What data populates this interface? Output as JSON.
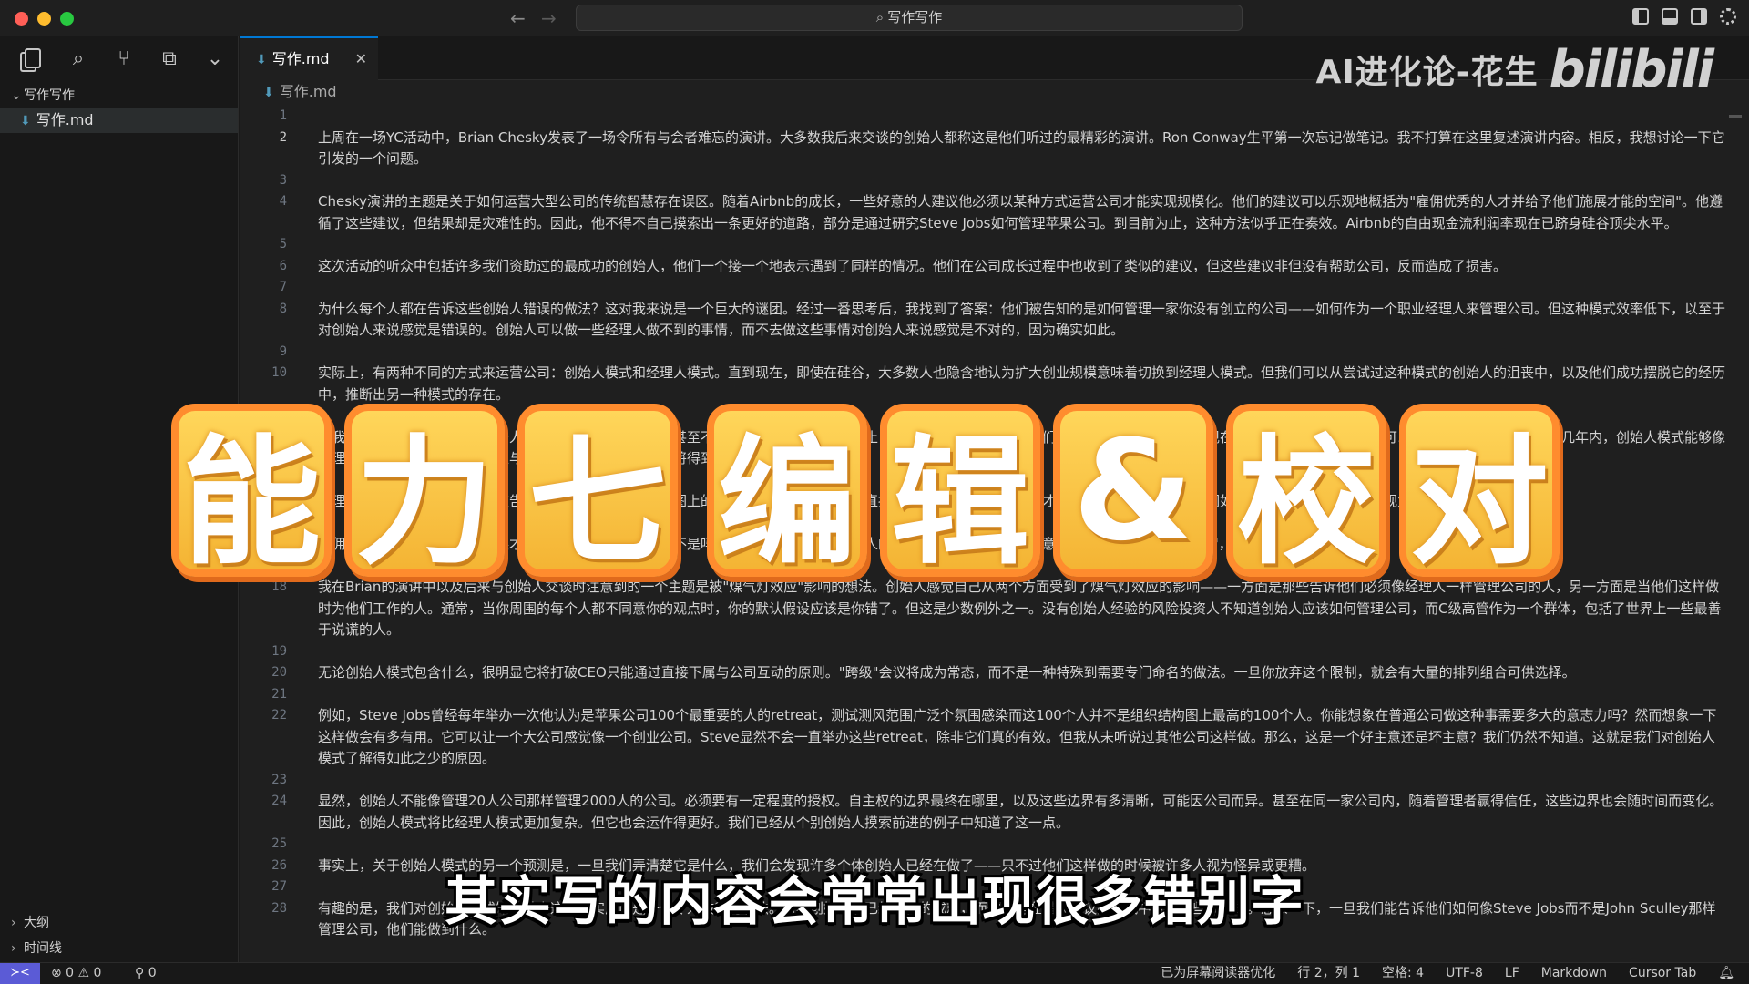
{
  "window": {
    "command_center": "写作写作"
  },
  "sidebar": {
    "folder_label": "写作写作",
    "files": [
      {
        "name": "写作.md"
      }
    ],
    "outline_label": "大纲",
    "timeline_label": "时间线"
  },
  "editor": {
    "tab_label": "写作.md",
    "breadcrumb": "写作.md",
    "lines": [
      {
        "num": "1",
        "text": ""
      },
      {
        "num": "2",
        "text": "上周在一场YC活动中，Brian Chesky发表了一场令所有与会者难忘的演讲。大多数我后来交谈的创始人都称这是他们听过的最精彩的演讲。Ron Conway生平第一次忘记做笔记。我不打算在这里复述演讲内容。相反，我想讨论一下它引发的一个问题。",
        "active": true
      },
      {
        "num": "3",
        "text": ""
      },
      {
        "num": "4",
        "text": "Chesky演讲的主题是关于如何运营大型公司的传统智慧存在误区。随着Airbnb的成长，一些好意的人建议他必须以某种方式运营公司才能实现规模化。他们的建议可以乐观地概括为\"雇佣优秀的人才并给予他们施展才能的空间\"。他遵循了这些建议，但结果却是灾难性的。因此，他不得不自己摸索出一条更好的道路，部分是通过研究Steve Jobs如何管理苹果公司。到目前为止，这种方法似乎正在奏效。Airbnb的自由现金流利润率现在已跻身硅谷顶尖水平。"
      },
      {
        "num": "5",
        "text": ""
      },
      {
        "num": "6",
        "text": "这次活动的听众中包括许多我们资助过的最成功的创始人，他们一个接一个地表示遇到了同样的情况。他们在公司成长过程中也收到了类似的建议，但这些建议非但没有帮助公司，反而造成了损害。"
      },
      {
        "num": "7",
        "text": ""
      },
      {
        "num": "8",
        "text": "为什么每个人都在告诉这些创始人错误的做法？这对我来说是一个巨大的谜团。经过一番思考后，我找到了答案：他们被告知的是如何管理一家你没有创立的公司——如何作为一个职业经理人来管理公司。但这种模式效率低下，以至于对创始人来说感觉是错误的。创始人可以做一些经理人做不到的事情，而不去做这些事情对创始人来说感觉是不对的，因为确实如此。"
      },
      {
        "num": "9",
        "text": ""
      },
      {
        "num": "10",
        "text": "实际上，有两种不同的方式来运营公司：创始人模式和经理人模式。直到现在，即使在硅谷，大多数人也隐含地认为扩大创业规模意味着切换到经理人模式。但我们可以从尝试过这种模式的创始人的沮丧中，以及他们成功摆脱它的经历中，推断出另一种模式的存在。"
      },
      {
        "num": "11",
        "text": ""
      },
      {
        "num": "12",
        "text": "据我所知，目前还没有关于创始人模式的专门著作。商学院甚至不知道它的存在。到目前为止，我们所拥有的只是创始人们自己摸索出来的实验。但现在我们知道要寻找什么，就可以去搜寻它。我希望在未来几年内，创始人模式能够像经理人模式一样被人理解，并且与之有所不同的一些做法也将得到认可。"
      },
      {
        "num": "13",
        "text": ""
      },
      {
        "num": "14",
        "text": "经理人模式是如何运作的？你被告知要把公司当作组织结构图上的一个个模块来管理，只与直接下属沟通，给予他们施展才能的空间，而不去干预他们如何完成工作。否则就会被视为微观管理，这是不好的。"
      },
      {
        "num": "15",
        "text": ""
      },
      {
        "num": "16",
        "text": "雇佣优秀的人才并给予他们施展才能的空间。听起来很棒，不是吗？但根据一个又一个创始人的报告，在实践中，这往往意味着：雇佣专业的\"伪装者\"，让他们把公司带入深渊。"
      },
      {
        "num": "17",
        "text": ""
      },
      {
        "num": "18",
        "text": "我在Brian的演讲中以及后来与创始人交谈时注意到的一个主题是被\"煤气灯效应\"影响的想法。创始人感觉自己从两个方面受到了煤气灯效应的影响——一方面是那些告诉他们必须像经理人一样管理公司的人，另一方面是当他们这样做时为他们工作的人。通常，当你周围的每个人都不同意你的观点时，你的默认假设应该是你错了。但这是少数例外之一。没有创始人经验的风险投资人不知道创始人应该如何管理公司，而C级高管作为一个群体，包括了世界上一些最善于说谎的人。"
      },
      {
        "num": "19",
        "text": ""
      },
      {
        "num": "20",
        "text": "无论创始人模式包含什么，很明显它将打破CEO只能通过直接下属与公司互动的原则。\"跨级\"会议将成为常态，而不是一种特殊到需要专门命名的做法。一旦你放弃这个限制，就会有大量的排列组合可供选择。"
      },
      {
        "num": "21",
        "text": ""
      },
      {
        "num": "22",
        "text": "例如，Steve Jobs曾经每年举办一次他认为是苹果公司100个最重要的人的retreat，测试测风范围广泛个氛围感染而这100个人并不是组织结构图上最高的100个人。你能想象在普通公司做这种事需要多大的意志力吗？然而想象一下这样做会有多有用。它可以让一个大公司感觉像一个创业公司。Steve显然不会一直举办这些retreat，除非它们真的有效。但我从未听说过其他公司这样做。那么，这是一个好主意还是坏主意？我们仍然不知道。这就是我们对创始人模式了解得如此之少的原因。"
      },
      {
        "num": "23",
        "text": ""
      },
      {
        "num": "24",
        "text": "显然，创始人不能像管理20人公司那样管理2000人的公司。必须要有一定程度的授权。自主权的边界最终在哪里，以及这些边界有多清晰，可能因公司而异。甚至在同一家公司内，随着管理者赢得信任，这些边界也会随时间而变化。因此，创始人模式将比经理人模式更加复杂。但它也会运作得更好。我们已经从个别创始人摸索前进的例子中知道了这一点。"
      },
      {
        "num": "25",
        "text": ""
      },
      {
        "num": "26",
        "text": "事实上，关于创始人模式的另一个预测是，一旦我们弄清楚它是什么，我们会发现许多个体创始人已经在做了——只不过他们这样做的时候被许多人视为怪异或更糟。"
      },
      {
        "num": "27",
        "text": ""
      },
      {
        "num": "28",
        "text": "有趣的是，我们对创始人模式知之甚少这一事实反而是一个令人鼓舞的想法。看看创始人们已经取得的成就，而他们是在错误建议的逆风中取得这些成就的。想象一下，一旦我们能告诉他们如何像Steve Jobs而不是John Sculley那样管理公司，他们能做到什么。"
      }
    ]
  },
  "watermark": {
    "author": "AI进化论-花生",
    "logo": "bilibili"
  },
  "overlay": {
    "title_chars": [
      "能",
      "力",
      "七",
      "编",
      "辑",
      "&",
      "校",
      "对"
    ],
    "subtitle": "其实写的内容会常常出现很多错别字"
  },
  "statusbar": {
    "problems": "⊗ 0 ⚠ 0",
    "ports": "⚲ 0",
    "screen_reader": "已为屏幕阅读器优化",
    "cursor_position": "行 2，列 1",
    "indentation": "空格: 4",
    "encoding": "UTF-8",
    "eol": "LF",
    "language": "Markdown",
    "tab_mode": "Cursor Tab"
  },
  "colors": {
    "accent": "#0078d4",
    "markdown_icon": "#519aba",
    "tile_fill": "#ffd65a",
    "tile_border": "#ff8c2e"
  }
}
